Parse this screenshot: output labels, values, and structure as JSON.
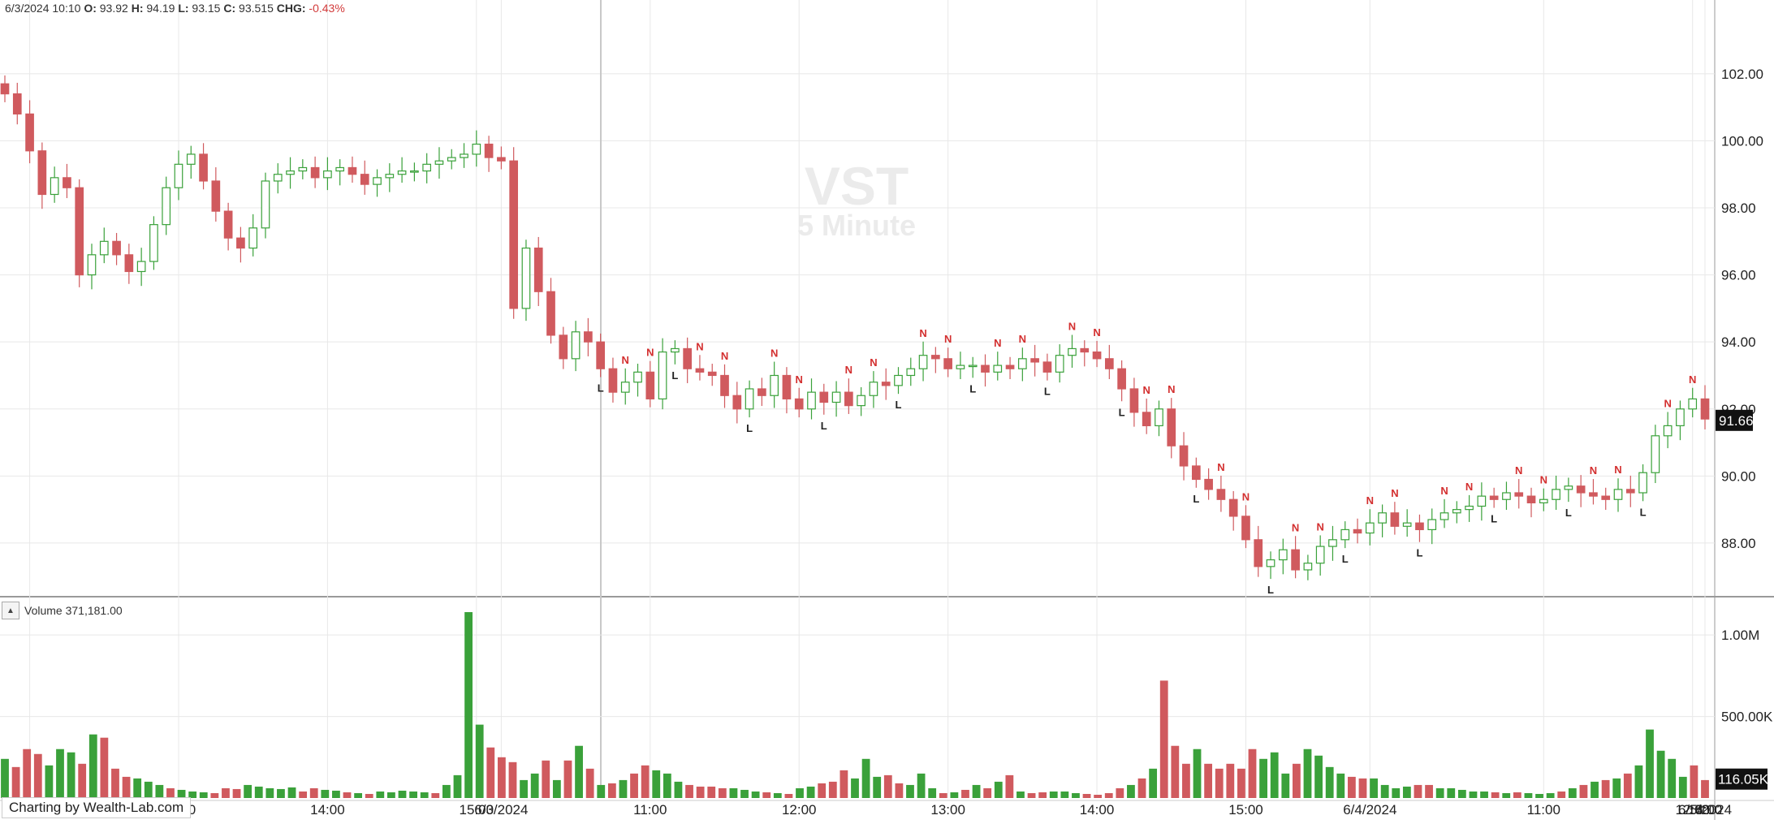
{
  "header": {
    "date": "6/3/2024 10:10",
    "o_label": "O:",
    "o": "93.92",
    "h_label": "H:",
    "h": "94.19",
    "l_label": "L:",
    "l": "93.15",
    "c_label": "C:",
    "c": "93.515",
    "chg_label": "CHG:",
    "chg": "-0.43%"
  },
  "watermark": {
    "symbol": "VST",
    "interval": "5 Minute"
  },
  "volume_pane": {
    "label": "Volume 371,181.00",
    "collapse_icon": "triangle-up-icon"
  },
  "credit": "Charting by Wealth-Lab.com",
  "colors": {
    "up": "#3aa13a",
    "down": "#d05a5e",
    "grid": "#e8e8e8",
    "label_N": "#d32f2f",
    "label_L": "#222222",
    "cursor": "#c8c8c8"
  },
  "chart_data": [
    {
      "type": "candlestick",
      "title": "",
      "y_ticks": [
        "102.00",
        "100.00",
        "98.00",
        "96.00",
        "94.00",
        "92.00",
        "90.00",
        "88.00"
      ],
      "ylim": [
        86.4,
        104.2
      ],
      "last_price_label": "91.66",
      "markers": [
        "N",
        "L"
      ],
      "grid": true,
      "days": [
        "6/3/2024",
        "6/4/2024",
        "6/5/2024"
      ],
      "closes_per_day": [
        [
          101.4,
          100.8,
          99.7,
          98.4,
          98.9,
          98.6,
          96.0,
          96.6,
          97.0,
          96.6,
          96.1,
          96.4,
          97.5,
          98.6,
          99.3,
          99.6,
          98.8,
          97.9,
          97.1,
          96.8,
          97.4,
          98.8,
          99.0,
          99.1,
          99.2,
          98.9,
          99.1,
          99.2,
          99.0,
          98.7,
          98.9,
          99.0,
          99.1,
          99.1,
          99.3,
          99.4,
          99.5,
          99.6,
          99.9,
          99.5
        ],
        [
          99.4,
          95.0,
          96.8,
          95.5,
          94.2,
          93.5,
          94.3,
          94.0,
          93.2,
          92.5,
          92.8,
          93.1,
          92.3,
          93.7,
          93.8,
          93.2,
          93.1,
          93.0,
          92.4,
          92.0,
          92.6,
          92.4,
          93.0,
          92.3,
          92.0,
          92.5,
          92.2,
          92.5,
          92.1,
          92.4,
          92.8,
          92.7,
          93.0,
          93.2,
          93.6,
          93.5,
          93.2,
          93.3,
          93.3,
          93.1,
          93.3,
          93.2,
          93.5,
          93.4,
          93.1,
          93.6,
          93.8,
          93.7,
          93.5,
          93.2,
          92.6,
          91.9,
          91.5,
          92.0,
          90.9,
          90.3,
          89.9,
          89.6,
          89.3,
          88.8,
          88.1,
          87.3,
          87.5,
          87.8,
          87.2,
          87.4,
          87.9,
          88.1,
          88.4,
          88.3,
          88.6,
          88.9,
          88.5,
          88.6,
          88.4,
          88.7,
          88.9,
          89.0,
          89.1,
          89.4,
          89.3,
          89.5,
          89.4,
          89.2,
          89.3,
          89.6,
          89.7,
          89.5,
          89.4,
          89.3,
          89.6,
          89.5
        ],
        [
          90.1,
          91.2,
          91.5,
          92.0,
          92.3,
          91.7
        ]
      ],
      "time_labels": [
        "12:00",
        "13:00",
        "14:00",
        "15:00",
        "6/3/2024",
        "11:00",
        "12:00",
        "13:00",
        "14:00",
        "15:00",
        "6/4/2024",
        "11:00",
        "12:00",
        "13:00",
        "14:00",
        "15:00",
        "6/5/2024"
      ]
    },
    {
      "type": "bar",
      "title": "Volume",
      "y_ticks": [
        "1.00M",
        "500.00K"
      ],
      "ylim": [
        0,
        1150000
      ],
      "last_value_label": "116.05K",
      "series": [
        {
          "values": [
            240000,
            190000,
            300000,
            270000,
            200000,
            300000,
            280000,
            210000,
            390000,
            370000,
            180000,
            130000,
            120000,
            100000,
            80000,
            60000,
            50000,
            40000,
            35000,
            30000,
            60000,
            55000,
            80000,
            70000,
            60000,
            55000,
            65000,
            40000,
            60000,
            50000,
            45000,
            35000,
            30000,
            25000,
            40000,
            35000,
            45000,
            40000,
            35000,
            30000,
            80000,
            140000,
            1140000,
            450000,
            310000,
            250000,
            220000,
            110000,
            150000,
            230000,
            110000,
            230000,
            320000,
            180000,
            80000,
            90000,
            110000,
            150000,
            200000,
            170000,
            150000,
            100000,
            80000,
            70000,
            70000,
            60000,
            60000,
            50000,
            40000,
            35000,
            30000,
            25000,
            60000,
            70000,
            90000,
            100000,
            170000,
            120000,
            240000,
            130000,
            140000,
            90000,
            80000,
            150000,
            60000,
            30000,
            35000,
            50000,
            80000,
            60000,
            100000,
            140000,
            40000,
            30000,
            35000,
            40000,
            40000,
            30000,
            25000,
            20000,
            30000,
            60000,
            80000,
            120000,
            180000,
            720000,
            320000,
            210000,
            300000,
            210000,
            180000,
            210000,
            180000,
            300000,
            240000,
            280000,
            150000,
            210000,
            300000,
            260000,
            190000,
            150000,
            130000,
            120000,
            120000,
            80000,
            60000,
            70000,
            80000,
            80000,
            60000,
            60000,
            50000,
            40000,
            40000,
            35000,
            30000,
            35000,
            30000,
            25000,
            30000,
            40000,
            60000,
            80000,
            100000,
            110000,
            120000,
            150000,
            200000,
            420000,
            290000,
            240000,
            130000,
            200000,
            110000
          ]
        }
      ]
    }
  ]
}
